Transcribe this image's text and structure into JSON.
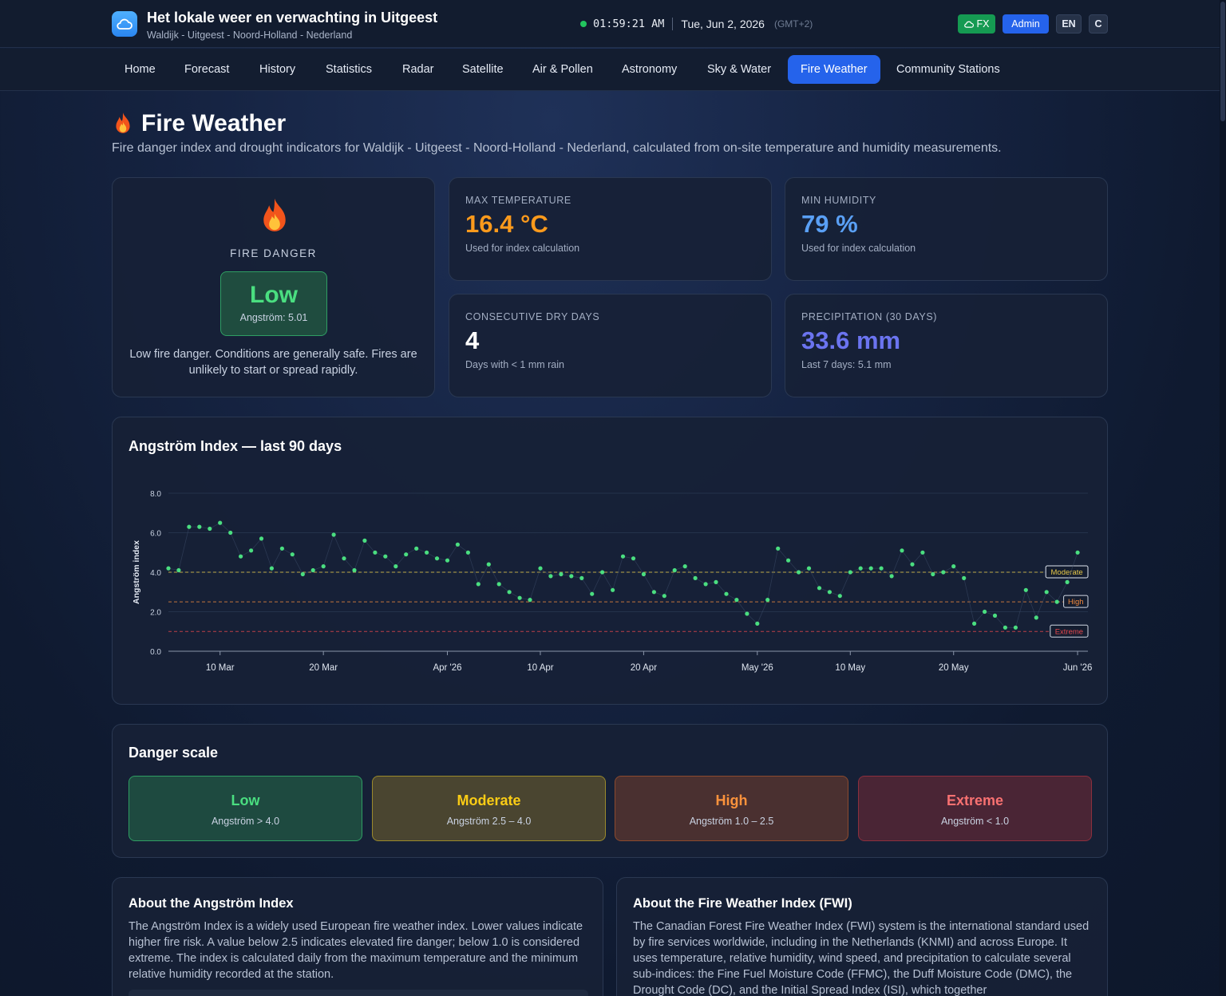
{
  "header": {
    "title": "Het lokale weer en verwachting in Uitgeest",
    "subtitle": "Waldijk - Uitgeest - Noord-Holland - Nederland",
    "time": "01:59:21 AM",
    "date": "Tue, Jun 2, 2026",
    "timezone": "(GMT+2)",
    "buttons": {
      "fx": "FX",
      "admin": "Admin",
      "lang": "EN",
      "c": "C"
    }
  },
  "nav": {
    "items": [
      "Home",
      "Forecast",
      "History",
      "Statistics",
      "Radar",
      "Satellite",
      "Air & Pollen",
      "Astronomy",
      "Sky & Water",
      "Fire Weather",
      "Community Stations"
    ],
    "active": "Fire Weather"
  },
  "page": {
    "title": "Fire Weather",
    "description": "Fire danger index and drought indicators for Waldijk - Uitgeest - Noord-Holland - Nederland, calculated from on-site temperature and humidity measurements."
  },
  "fire_danger": {
    "label": "FIRE DANGER",
    "level": "Low",
    "angstrom": "Angström: 5.01",
    "text": "Low fire danger. Conditions are generally safe. Fires are unlikely to start or spread rapidly.",
    "color": "#4ade80"
  },
  "stats": {
    "max_temp": {
      "label": "MAX TEMPERATURE",
      "value": "16.4 °C",
      "sub": "Used for index calculation",
      "color": "#fb9a1c"
    },
    "min_humidity": {
      "label": "MIN HUMIDITY",
      "value": "79 %",
      "sub": "Used for index calculation",
      "color": "#5aa0f5"
    },
    "dry_days": {
      "label": "CONSECUTIVE DRY DAYS",
      "value": "4",
      "sub": "Days with < 1 mm rain",
      "color": "#ffffff"
    },
    "precipitation": {
      "label": "PRECIPITATION (30 DAYS)",
      "value": "33.6 mm",
      "sub": "Last 7 days: 5.1 mm",
      "color": "#6b74f0"
    }
  },
  "chart": {
    "title": "Angström Index — last 90 days"
  },
  "chart_data": {
    "type": "scatter",
    "ylabel": "Angström index",
    "ylim": [
      0,
      8
    ],
    "yticks": [
      "0.0",
      "2.0",
      "4.0",
      "6.0",
      "8.0"
    ],
    "x_start": "2026-03-05",
    "x_end": "2026-06-02",
    "xticks": [
      {
        "date": "2026-03-10",
        "label": "10 Mar"
      },
      {
        "date": "2026-03-20",
        "label": "20 Mar"
      },
      {
        "date": "2026-04-01",
        "label": "Apr '26"
      },
      {
        "date": "2026-04-10",
        "label": "10 Apr"
      },
      {
        "date": "2026-04-20",
        "label": "20 Apr"
      },
      {
        "date": "2026-05-01",
        "label": "May '26"
      },
      {
        "date": "2026-05-10",
        "label": "10 May"
      },
      {
        "date": "2026-05-20",
        "label": "20 May"
      },
      {
        "date": "2026-06-01",
        "label": "Jun '26"
      }
    ],
    "thresholds": [
      {
        "name": "Moderate",
        "value": 4.0,
        "color": "#e6c84a"
      },
      {
        "name": "High",
        "value": 2.5,
        "color": "#f0883e"
      },
      {
        "name": "Extreme",
        "value": 1.0,
        "color": "#e5484d"
      }
    ],
    "series": [
      {
        "start": "2026-03-05",
        "color": "#4ade80",
        "values": [
          4.2,
          4.1,
          6.3,
          6.3,
          6.2,
          6.5,
          6.0,
          4.8,
          5.1,
          5.7,
          4.2,
          5.2,
          4.9,
          3.9,
          4.1,
          4.3,
          5.9,
          4.7,
          4.1,
          5.6,
          5.0,
          4.8,
          4.3,
          4.9,
          5.2,
          5.0,
          4.7,
          4.6,
          5.4,
          5.0,
          3.4,
          4.4,
          3.4,
          3.0,
          2.7,
          2.6,
          4.2,
          3.8,
          3.9,
          3.8,
          3.7,
          2.9,
          4.0,
          3.1,
          4.8,
          4.7,
          3.9,
          3.0,
          2.8,
          4.1,
          4.3,
          3.7,
          3.4,
          3.5,
          2.9,
          2.6,
          1.9,
          1.4,
          2.6,
          5.2,
          4.6,
          4.0,
          4.2,
          3.2,
          3.0,
          2.8,
          4.0,
          4.2,
          4.2,
          4.2,
          3.8,
          5.1,
          4.4,
          5.0,
          3.9,
          4.0,
          4.3,
          3.7,
          1.4,
          2.0,
          1.8,
          1.2,
          1.2,
          3.1,
          1.7,
          3.0,
          2.5,
          3.5,
          5.0
        ]
      }
    ]
  },
  "danger_scale": {
    "title": "Danger scale",
    "levels": [
      {
        "name": "Low",
        "range": "Angström > 4.0",
        "color": "#4ade80",
        "bg": "#1e4a40",
        "border": "#2f9e63"
      },
      {
        "name": "Moderate",
        "range": "Angström 2.5 – 4.0",
        "color": "#facc15",
        "bg": "#4a4530",
        "border": "#9a8a2c"
      },
      {
        "name": "High",
        "range": "Angström 1.0 – 2.5",
        "color": "#fb923c",
        "bg": "#4a3030",
        "border": "#8c4a2e"
      },
      {
        "name": "Extreme",
        "range": "Angström < 1.0",
        "color": "#f87171",
        "bg": "#4a2535",
        "border": "#8c2f3e"
      }
    ]
  },
  "about_angstrom": {
    "title": "About the Angström Index",
    "text": "The Angström Index is a widely used European fire weather index. Lower values indicate higher fire risk. A value below 2.5 indicates elevated fire danger; below 1.0 is considered extreme. The index is calculated daily from the maximum temperature and the minimum relative humidity recorded at the station."
  },
  "about_fwi": {
    "title": "About the Fire Weather Index (FWI)",
    "text": "The Canadian Forest Fire Weather Index (FWI) system is the international standard used by fire services worldwide, including in the Netherlands (KNMI) and across Europe. It uses temperature, relative humidity, wind speed, and precipitation to calculate several sub-indices: the Fine Fuel Moisture Code (FFMC), the Duff Moisture Code (DMC), the Drought Code (DC), and the Initial Spread Index (ISI), which together"
  }
}
